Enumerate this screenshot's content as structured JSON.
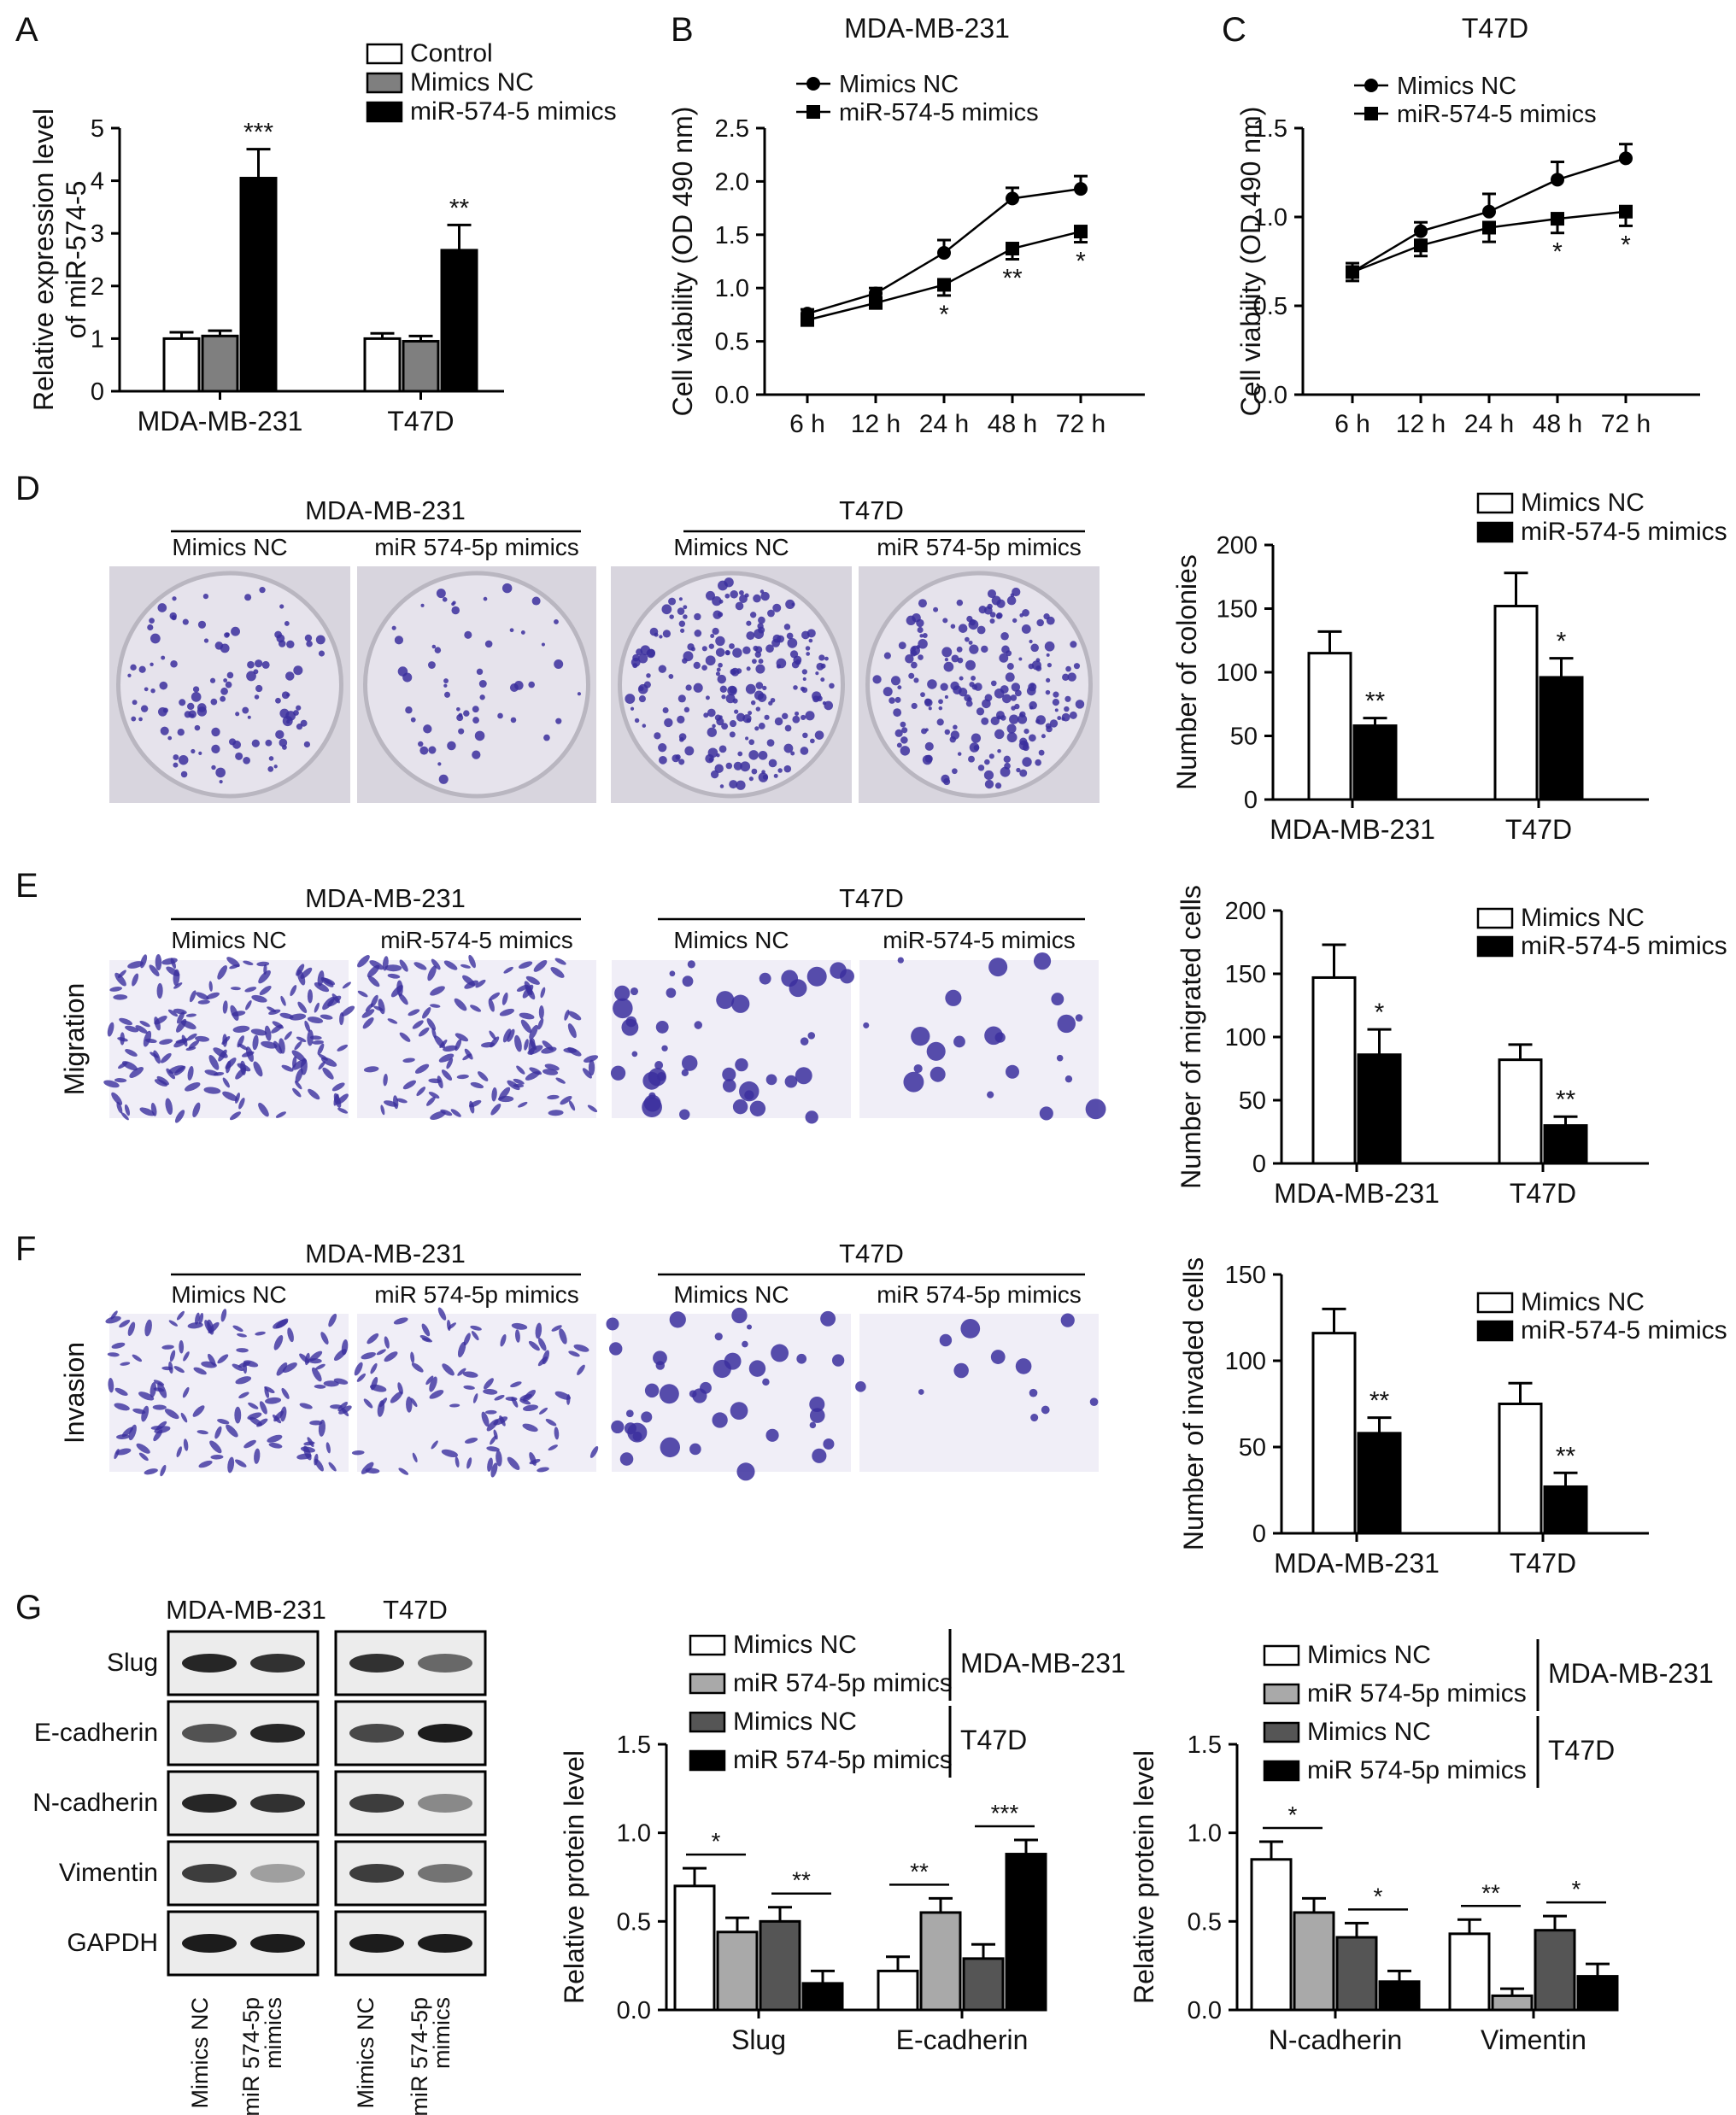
{
  "panels": {
    "A": "A",
    "B": "B",
    "C": "C",
    "D": "D",
    "E": "E",
    "F": "F",
    "G": "G"
  },
  "images": {
    "D": {
      "groups": [
        "MDA-MB-231",
        "T47D"
      ],
      "conditions": [
        "Mimics NC",
        "miR 574-5p mimics",
        "Mimics NC",
        "miR 574-5p mimics"
      ]
    },
    "E": {
      "groups": [
        "MDA-MB-231",
        "T47D"
      ],
      "conditions": [
        "Mimics NC",
        "miR-574-5 mimics",
        "Mimics NC",
        "miR-574-5 mimics"
      ],
      "row_label": "Migration"
    },
    "F": {
      "groups": [
        "MDA-MB-231",
        "T47D"
      ],
      "conditions": [
        "Mimics NC",
        "miR 574-5p mimics",
        "Mimics NC",
        "miR 574-5p mimics"
      ],
      "row_label": "Invasion"
    }
  },
  "blot": {
    "cell_lines": [
      "MDA-MB-231",
      "T47D"
    ],
    "proteins": [
      "Slug",
      "E-cadherin",
      "N-cadherin",
      "Vimentin",
      "GAPDH"
    ],
    "lanes": [
      "Mimics NC",
      "miR 574-5p mimics",
      "Mimics NC",
      "miR 574-5p mimics"
    ]
  },
  "colors": {
    "control": "#ffffff",
    "mimics_nc_gray": "#7f7f7f",
    "mimics": "#000000",
    "light_gray": "#a9a9a9",
    "dark_gray": "#555555",
    "stain": "#3b2f9e"
  },
  "chart_data": [
    {
      "id": "A",
      "type": "bar",
      "categories": [
        "MDA-MB-231",
        "T47D"
      ],
      "series": [
        {
          "name": "Control",
          "values": [
            1.0,
            1.0
          ],
          "errors": [
            0.12,
            0.1
          ]
        },
        {
          "name": "Mimics NC",
          "values": [
            1.05,
            0.95
          ],
          "errors": [
            0.1,
            0.1
          ]
        },
        {
          "name": "miR-574-5 mimics",
          "values": [
            4.05,
            2.68
          ],
          "errors": [
            0.55,
            0.48
          ]
        }
      ],
      "significance": [
        [
          "",
          "",
          "***"
        ],
        [
          "",
          "",
          "**"
        ]
      ],
      "ylabel": [
        "Relative expression level",
        "of miR-574-5"
      ],
      "ylim": [
        0,
        5
      ],
      "yticks": [
        "0",
        "1",
        "2",
        "3",
        "4",
        "5"
      ],
      "legend": "top"
    },
    {
      "id": "B",
      "type": "line",
      "title": "MDA-MB-231",
      "x": [
        "6 h",
        "12 h",
        "24 h",
        "48 h",
        "72 h"
      ],
      "series": [
        {
          "name": "Mimics NC",
          "marker": "circle",
          "values": [
            0.76,
            0.95,
            1.33,
            1.84,
            1.93
          ],
          "errors": [
            0.04,
            0.05,
            0.12,
            0.1,
            0.12
          ]
        },
        {
          "name": "miR-574-5 mimics",
          "marker": "square",
          "values": [
            0.7,
            0.86,
            1.03,
            1.37,
            1.53
          ],
          "errors": [
            0.04,
            0.05,
            0.1,
            0.1,
            0.1
          ]
        }
      ],
      "significance": [
        "",
        "",
        "*",
        "**",
        "*"
      ],
      "ylabel": "Cell viability (OD 490 nm)",
      "ylim": [
        0,
        2.5
      ],
      "yticks": [
        "0.0",
        "0.5",
        "1.0",
        "1.5",
        "2.0",
        "2.5"
      ],
      "legend": "top-left"
    },
    {
      "id": "C",
      "type": "line",
      "title": "T47D",
      "x": [
        "6 h",
        "12 h",
        "24 h",
        "48 h",
        "72 h"
      ],
      "series": [
        {
          "name": "Mimics NC",
          "marker": "circle",
          "values": [
            0.69,
            0.92,
            1.03,
            1.21,
            1.33
          ],
          "errors": [
            0.05,
            0.05,
            0.1,
            0.1,
            0.08
          ]
        },
        {
          "name": "miR-574-5 mimics",
          "marker": "square",
          "values": [
            0.69,
            0.84,
            0.94,
            0.99,
            1.03
          ],
          "errors": [
            0.05,
            0.06,
            0.08,
            0.08,
            0.08
          ]
        }
      ],
      "significance": [
        "",
        "",
        "",
        "*",
        "*"
      ],
      "ylabel": "Cell viability (OD 490 nm)",
      "ylim": [
        0,
        1.5
      ],
      "yticks": [
        "0.0",
        "0.5",
        "1.0",
        "1.5"
      ],
      "legend": "top-left"
    },
    {
      "id": "D",
      "type": "bar",
      "categories": [
        "MDA-MB-231",
        "T47D"
      ],
      "series": [
        {
          "name": "Mimics NC",
          "values": [
            115,
            152
          ],
          "errors": [
            17,
            26
          ]
        },
        {
          "name": "miR-574-5 mimics",
          "values": [
            58,
            96
          ],
          "errors": [
            6,
            15
          ]
        }
      ],
      "significance": [
        [
          "",
          "**"
        ],
        [
          "",
          "*"
        ]
      ],
      "ylabel": "Number of colonies",
      "ylim": [
        0,
        200
      ],
      "yticks": [
        "0",
        "50",
        "100",
        "150",
        "200"
      ],
      "legend": "top-right"
    },
    {
      "id": "E",
      "type": "bar",
      "categories": [
        "MDA-MB-231",
        "T47D"
      ],
      "series": [
        {
          "name": "Mimics NC",
          "values": [
            147,
            82
          ],
          "errors": [
            26,
            12
          ]
        },
        {
          "name": "miR-574-5 mimics",
          "values": [
            86,
            30
          ],
          "errors": [
            20,
            7
          ]
        }
      ],
      "significance": [
        [
          "",
          "*"
        ],
        [
          "",
          "**"
        ]
      ],
      "ylabel": "Number of migrated cells",
      "ylim": [
        0,
        200
      ],
      "yticks": [
        "0",
        "50",
        "100",
        "150",
        "200"
      ],
      "legend": "top-right"
    },
    {
      "id": "F",
      "type": "bar",
      "categories": [
        "MDA-MB-231",
        "T47D"
      ],
      "series": [
        {
          "name": "Mimics NC",
          "values": [
            116,
            75
          ],
          "errors": [
            14,
            12
          ]
        },
        {
          "name": "miR-574-5 mimics",
          "values": [
            58,
            27
          ],
          "errors": [
            9,
            8
          ]
        }
      ],
      "significance": [
        [
          "",
          "**"
        ],
        [
          "",
          "**"
        ]
      ],
      "ylabel": "Number of invaded cells",
      "ylim": [
        0,
        150
      ],
      "yticks": [
        "0",
        "50",
        "100",
        "150"
      ],
      "legend": "top-right"
    },
    {
      "id": "G1",
      "type": "bar",
      "categories": [
        "Slug",
        "E-cadherin"
      ],
      "series": [
        {
          "name": "Mimics NC",
          "group": "MDA-MB-231",
          "values": [
            0.7,
            0.22
          ],
          "errors": [
            0.1,
            0.08
          ]
        },
        {
          "name": "miR 574-5p mimics",
          "group": "MDA-MB-231",
          "values": [
            0.44,
            0.55
          ],
          "errors": [
            0.08,
            0.08
          ]
        },
        {
          "name": "Mimics NC",
          "group": "T47D",
          "values": [
            0.5,
            0.29
          ],
          "errors": [
            0.08,
            0.08
          ]
        },
        {
          "name": "miR 574-5p mimics",
          "group": "T47D",
          "values": [
            0.15,
            0.88
          ],
          "errors": [
            0.07,
            0.08
          ]
        }
      ],
      "comparisons": [
        {
          "cat": 0,
          "from": 0,
          "to": 1,
          "label": "*"
        },
        {
          "cat": 0,
          "from": 2,
          "to": 3,
          "label": "**"
        },
        {
          "cat": 1,
          "from": 0,
          "to": 1,
          "label": "**"
        },
        {
          "cat": 1,
          "from": 2,
          "to": 3,
          "label": "***"
        }
      ],
      "ylabel": "Relative protein level",
      "ylim": [
        0,
        1.5
      ],
      "yticks": [
        "0.0",
        "0.5",
        "1.0",
        "1.5"
      ],
      "legend": "top",
      "legend_groups": [
        "MDA-MB-231",
        "T47D"
      ]
    },
    {
      "id": "G2",
      "type": "bar",
      "categories": [
        "N-cadherin",
        "Vimentin"
      ],
      "series": [
        {
          "name": "Mimics NC",
          "group": "MDA-MB-231",
          "values": [
            0.85,
            0.43
          ],
          "errors": [
            0.1,
            0.08
          ]
        },
        {
          "name": "miR 574-5p mimics",
          "group": "MDA-MB-231",
          "values": [
            0.55,
            0.08
          ],
          "errors": [
            0.08,
            0.04
          ]
        },
        {
          "name": "Mimics NC",
          "group": "T47D",
          "values": [
            0.41,
            0.45
          ],
          "errors": [
            0.08,
            0.08
          ]
        },
        {
          "name": "miR 574-5p mimics",
          "group": "T47D",
          "values": [
            0.16,
            0.19
          ],
          "errors": [
            0.06,
            0.07
          ]
        }
      ],
      "comparisons": [
        {
          "cat": 0,
          "from": 0,
          "to": 1,
          "label": "*"
        },
        {
          "cat": 0,
          "from": 2,
          "to": 3,
          "label": "*"
        },
        {
          "cat": 1,
          "from": 0,
          "to": 1,
          "label": "**"
        },
        {
          "cat": 1,
          "from": 2,
          "to": 3,
          "label": "*"
        }
      ],
      "ylabel": "Relative protein level",
      "ylim": [
        0,
        1.5
      ],
      "yticks": [
        "0.0",
        "0.5",
        "1.0",
        "1.5"
      ],
      "legend": "top",
      "legend_groups": [
        "MDA-MB-231",
        "T47D"
      ]
    }
  ]
}
